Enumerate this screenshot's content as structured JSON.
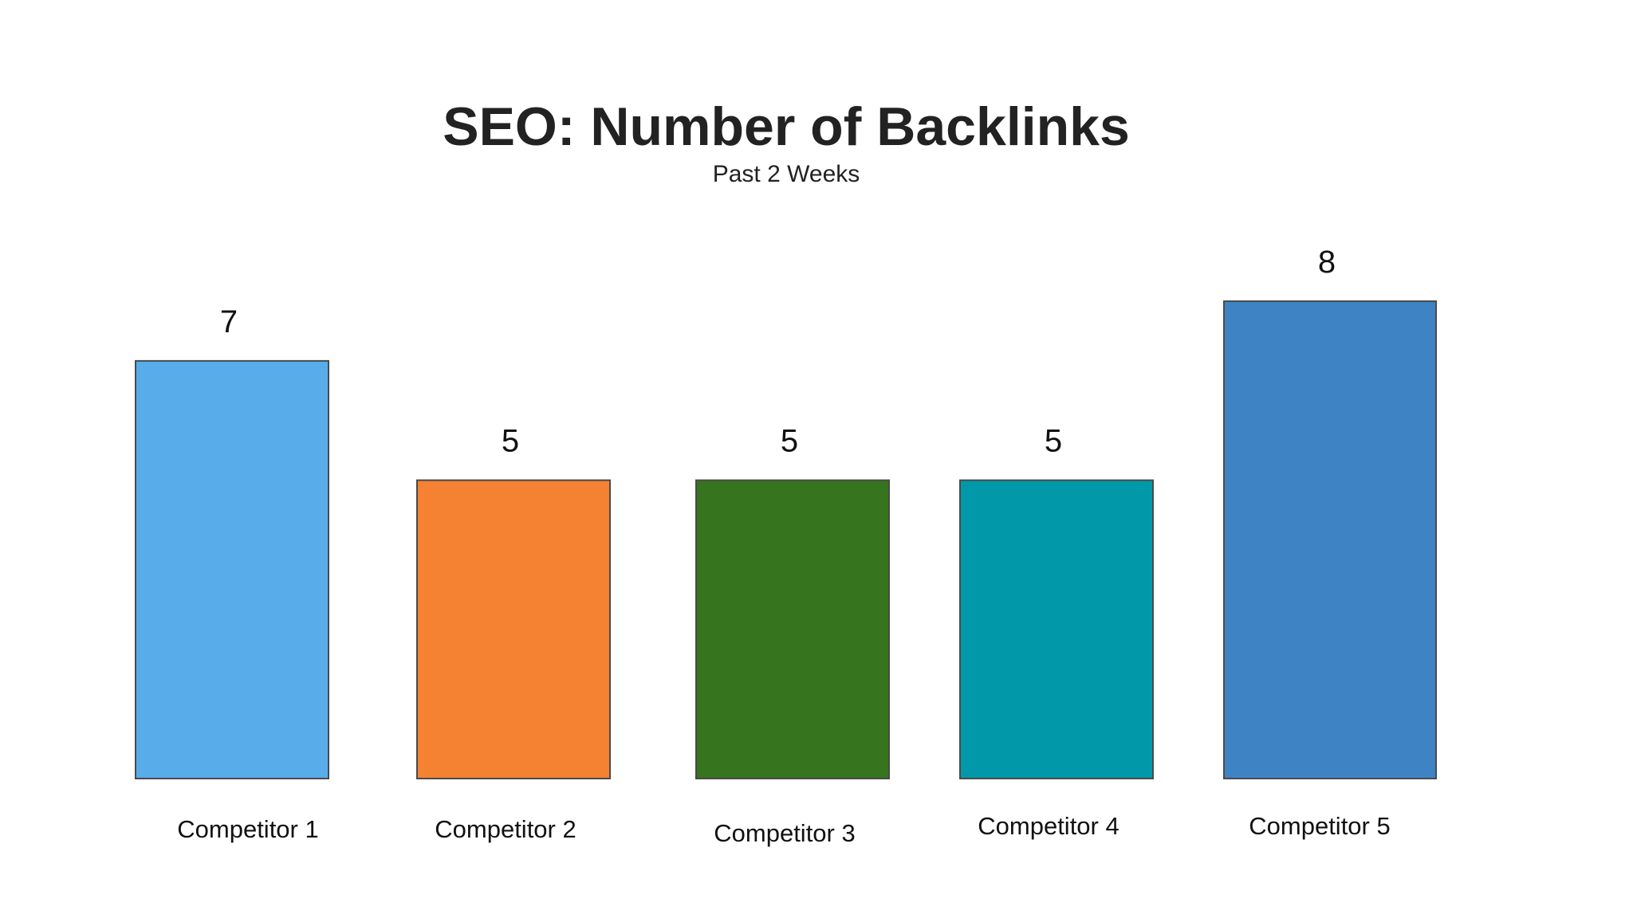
{
  "chart_data": {
    "type": "bar",
    "title": "SEO: Number of Backlinks",
    "subtitle": "Past 2 Weeks",
    "xlabel": "",
    "ylabel": "",
    "categories": [
      "Competitor 1",
      "Competitor 2",
      "Competitor 3",
      "Competitor 4",
      "Competitor 5"
    ],
    "values": [
      7,
      5,
      5,
      5,
      8
    ],
    "value_labels": [
      "7",
      "5",
      "5",
      "5",
      "8"
    ],
    "colors": [
      "#58ACEA",
      "#F58233",
      "#36741E",
      "#0199A9",
      "#3E84C4"
    ],
    "ylim": [
      0,
      8
    ],
    "grid": false,
    "legend": "none",
    "data_labels": "above-bars"
  }
}
